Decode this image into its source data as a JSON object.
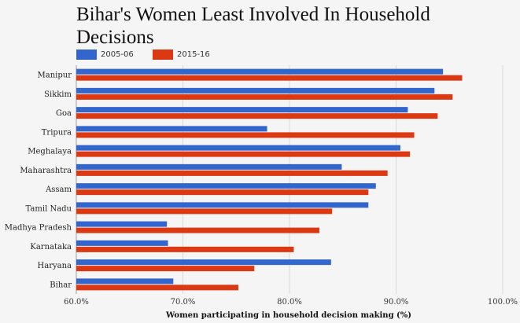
{
  "chart_data": {
    "type": "bar",
    "orientation": "horizontal",
    "title": "Bihar's Women Least Involved In Household Decisions",
    "xlabel": "Women participating in household decision making (%)",
    "ylabel": "",
    "xlim": [
      60,
      100
    ],
    "xticks": [
      60,
      70,
      80,
      90,
      100
    ],
    "xtick_labels": [
      "60.0%",
      "70.0%",
      "80.0%",
      "90.0%",
      "100.0%"
    ],
    "grid": true,
    "legend_position": "top-left",
    "categories": [
      "Manipur",
      "Sikkim",
      "Goa",
      "Tripura",
      "Meghalaya",
      "Maharashtra",
      "Assam",
      "Tamil Nadu",
      "Madhya Pradesh",
      "Karnataka",
      "Haryana",
      "Bihar"
    ],
    "series": [
      {
        "name": "2005-06",
        "color": "#3366cc",
        "values": [
          94.4,
          93.6,
          91.1,
          77.9,
          90.4,
          84.9,
          88.1,
          87.4,
          68.5,
          68.6,
          83.9,
          69.1
        ]
      },
      {
        "name": "2015-16",
        "color": "#dc3912",
        "values": [
          96.2,
          95.3,
          93.9,
          91.7,
          91.3,
          89.2,
          87.4,
          84.0,
          82.8,
          80.4,
          76.7,
          75.2
        ]
      }
    ]
  }
}
